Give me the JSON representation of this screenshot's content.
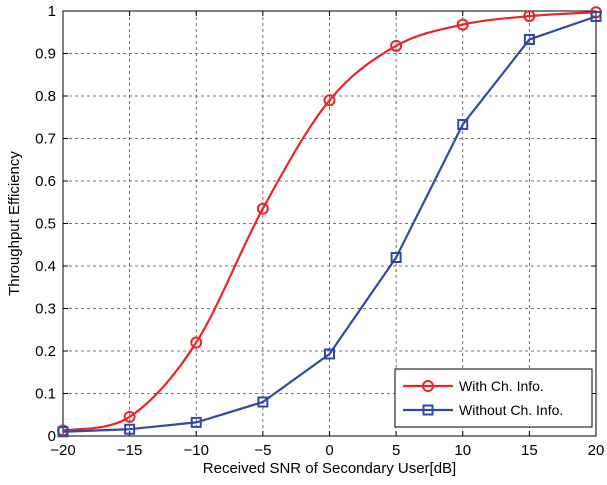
{
  "chart_data": {
    "type": "line",
    "xlabel": "Received SNR of Secondary User[dB]",
    "ylabel": "Throughput Efficiency",
    "xlim": [
      -20,
      20
    ],
    "ylim": [
      0,
      1
    ],
    "xticks": [
      -20,
      -15,
      -10,
      -5,
      0,
      5,
      10,
      15,
      20
    ],
    "yticks": [
      0,
      0.1,
      0.2,
      0.3,
      0.4,
      0.5,
      0.6,
      0.7,
      0.8,
      0.9,
      1
    ],
    "xtick_labels": [
      "−20",
      "−15",
      "−10",
      "−5",
      "0",
      "5",
      "10",
      "15",
      "20"
    ],
    "ytick_labels": [
      "0",
      "0.1",
      "0.2",
      "0.3",
      "0.4",
      "0.5",
      "0.6",
      "0.7",
      "0.8",
      "0.9",
      "1"
    ],
    "grid": true,
    "grid_style": "dashed",
    "legend_position": "bottom-right",
    "x": [
      -20,
      -15,
      -10,
      -5,
      0,
      5,
      10,
      15,
      20
    ],
    "series": [
      {
        "name": "With Ch. Info.",
        "color": "#e8262a",
        "marker": "circle",
        "smooth": true,
        "values": [
          0.013,
          0.045,
          0.22,
          0.535,
          0.79,
          0.918,
          0.968,
          0.988,
          0.997
        ]
      },
      {
        "name": "Without Ch. Info.",
        "color": "#2f4aa3",
        "marker": "square",
        "smooth": false,
        "values": [
          0.01,
          0.016,
          0.032,
          0.08,
          0.193,
          0.42,
          0.733,
          0.933,
          0.987
        ]
      }
    ]
  }
}
